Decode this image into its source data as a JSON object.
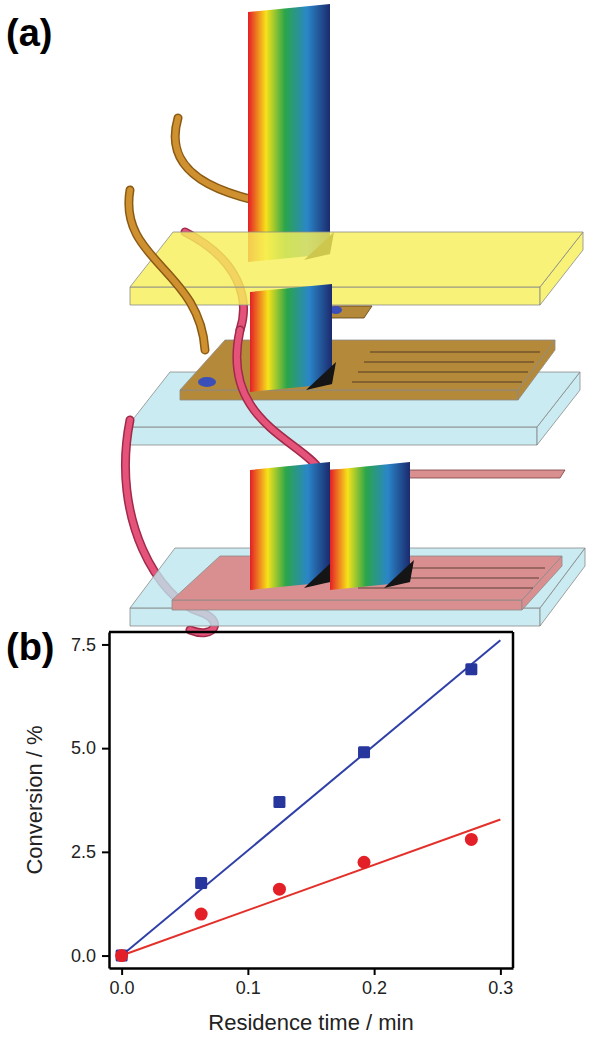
{
  "diagram": {
    "label": "(a)"
  },
  "chart_data": {
    "type": "scatter",
    "title": "(b)",
    "x_label": "Residence time / min",
    "y_label": "Conversion / %",
    "xlim": [
      -0.01,
      0.31
    ],
    "xticks": [
      {
        "value": 0,
        "label": "0.0"
      },
      0.1,
      0.2,
      0.3
    ],
    "ylim": [
      -0.3,
      7.8
    ],
    "yticks": [
      {
        "value": 0,
        "label": "0.0"
      },
      2.5,
      {
        "value": 5,
        "label": "5.0"
      },
      7.5
    ],
    "series": [
      {
        "type": "scatter",
        "color": "#27369c",
        "marker": "square",
        "x": [
          0,
          0.063,
          0.125,
          0.192,
          0.277
        ],
        "values": [
          0,
          1.75,
          3.7,
          4.9,
          6.9
        ]
      },
      {
        "type": "scatter",
        "color": "#e32027",
        "marker": "circle",
        "x": [
          0,
          0.063,
          0.125,
          0.192,
          0.277
        ],
        "values": [
          0,
          1.0,
          1.6,
          2.25,
          2.8
        ]
      },
      {
        "type": "line",
        "color": "#2f3fa8",
        "line_style": "solid",
        "x": [
          0,
          0.3
        ],
        "values": [
          0,
          7.6
        ]
      },
      {
        "type": "line",
        "color": "#e3302a",
        "line_style": "solid",
        "x": [
          0,
          0.3
        ],
        "values": [
          0,
          3.28
        ]
      }
    ]
  }
}
